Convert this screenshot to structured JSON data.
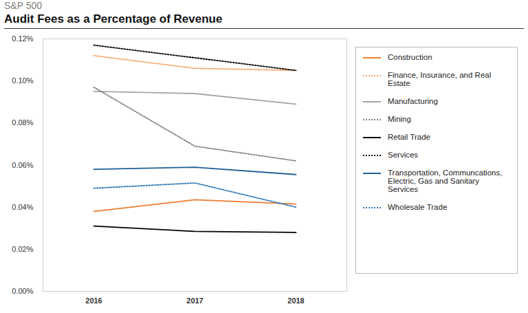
{
  "chart_data": {
    "type": "line",
    "subtitle": "S&P 500",
    "title": "Audit Fees as a Percentage of Revenue",
    "categories": [
      "2016",
      "2017",
      "2018"
    ],
    "ylim": [
      0,
      0.12
    ],
    "yticks": [
      {
        "value": 0,
        "label": "0.00%"
      },
      {
        "value": 0.02,
        "label": "0.02%"
      },
      {
        "value": 0.04,
        "label": "0.04%"
      },
      {
        "value": 0.06,
        "label": "0.06%"
      },
      {
        "value": 0.08,
        "label": "0.08%"
      },
      {
        "value": 0.1,
        "label": "0.10%"
      },
      {
        "value": 0.12,
        "label": "0.12%"
      }
    ],
    "grid": false,
    "legend": "right",
    "series": [
      {
        "name": "Construction",
        "color": "#ed7d31",
        "line_style": "solid",
        "values": [
          0.038,
          0.0435,
          0.0415
        ]
      },
      {
        "name": "Finance, Insurance, and Real Estate",
        "color": "#f4a46a",
        "line_style": "dotted",
        "values": [
          0.112,
          0.106,
          0.105
        ]
      },
      {
        "name": "Manufacturing",
        "color": "#a5a5a5",
        "line_style": "solid",
        "values": [
          0.095,
          0.094,
          0.089
        ]
      },
      {
        "name": "Mining",
        "color": "#808080",
        "line_style": "dotted",
        "values": [
          0.097,
          0.069,
          0.062
        ]
      },
      {
        "name": "Retail Trade",
        "color": "#000000",
        "line_style": "solid",
        "values": [
          0.031,
          0.0285,
          0.028
        ]
      },
      {
        "name": "Services",
        "color": "#000000",
        "line_style": "dotted",
        "values": [
          0.117,
          0.111,
          0.105
        ]
      },
      {
        "name": "Transportation, Communcations, Electric, Gas and Sanitary Services",
        "color": "#1f5f99",
        "line_style": "solid",
        "values": [
          0.058,
          0.059,
          0.0555
        ]
      },
      {
        "name": "Wholesale Trade",
        "color": "#2e75b6",
        "line_style": "dotted",
        "values": [
          0.049,
          0.0515,
          0.04
        ]
      }
    ]
  }
}
